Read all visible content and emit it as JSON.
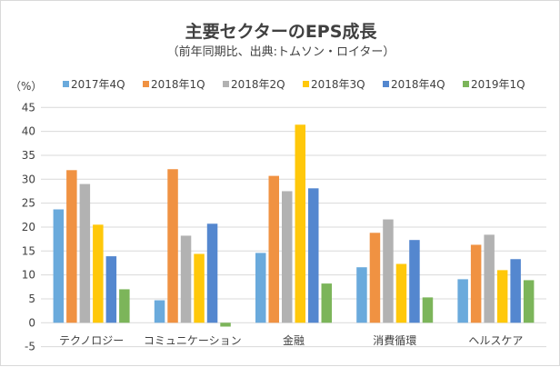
{
  "chart_data": {
    "type": "bar",
    "title": "主要セクターのEPS成長",
    "subtitle": "（前年同期比、出典:トムソン・ロイター）",
    "ylabel": "（%）",
    "xlabel": "",
    "ylim": [
      -5,
      45
    ],
    "yticks": [
      "-5",
      "0",
      "5",
      "10",
      "15",
      "20",
      "25",
      "30",
      "35",
      "40",
      "45"
    ],
    "grid": true,
    "legend_position": "top",
    "categories": [
      "テクノロジー",
      "コミュニケーション",
      "金融",
      "消費循環",
      "ヘルスケア"
    ],
    "series": [
      {
        "name": "2017年4Q",
        "color": "#6aaadc",
        "values": [
          23.7,
          4.7,
          14.6,
          11.6,
          9.1
        ]
      },
      {
        "name": "2018年1Q",
        "color": "#f09242",
        "values": [
          31.9,
          32.1,
          30.7,
          18.8,
          16.3
        ]
      },
      {
        "name": "2018年2Q",
        "color": "#b2b2b2",
        "values": [
          29.0,
          18.2,
          27.5,
          21.6,
          18.4
        ]
      },
      {
        "name": "2018年3Q",
        "color": "#ffc80a",
        "values": [
          20.5,
          14.4,
          41.4,
          12.3,
          11.0
        ]
      },
      {
        "name": "2018年4Q",
        "color": "#5487cf",
        "values": [
          13.9,
          20.7,
          28.1,
          17.3,
          13.3
        ]
      },
      {
        "name": "2019年1Q",
        "color": "#7cb55a",
        "values": [
          7.0,
          -0.8,
          8.2,
          5.3,
          8.9
        ]
      }
    ]
  }
}
